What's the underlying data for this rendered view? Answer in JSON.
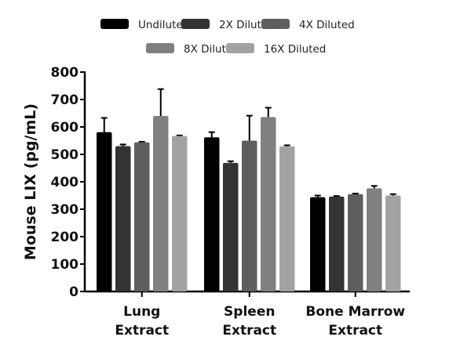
{
  "chart_data": {
    "type": "bar",
    "ylabel": "Mouse LIX (pg/mL)",
    "xlabel": "",
    "ylim": [
      0,
      800
    ],
    "yticks": [
      0,
      100,
      200,
      300,
      400,
      500,
      600,
      700,
      800
    ],
    "categories": [
      [
        "Lung",
        "Extract"
      ],
      [
        "Spleen",
        "Extract"
      ],
      [
        "Bone Marrow",
        "Extract"
      ]
    ],
    "legend_position": "top",
    "grid": false,
    "series": [
      {
        "name": "Undiluted",
        "color": "#000000",
        "values": [
          581,
          562,
          344
        ],
        "error_upper": [
          633,
          581,
          350
        ]
      },
      {
        "name": "2X Diluted",
        "color": "#333333",
        "values": [
          530,
          469,
          346
        ],
        "error_upper": [
          536,
          475,
          348
        ]
      },
      {
        "name": "4X Diluted",
        "color": "#5e5e5e",
        "values": [
          544,
          550,
          355
        ],
        "error_upper": [
          546,
          641,
          357
        ]
      },
      {
        "name": "8X Diluted",
        "color": "#808080",
        "values": [
          640,
          636,
          376
        ],
        "error_upper": [
          738,
          670,
          385
        ]
      },
      {
        "name": "16X Diluted",
        "color": "#a2a2a4",
        "values": [
          567,
          529,
          350
        ],
        "error_upper": [
          569,
          533,
          355
        ]
      }
    ]
  }
}
